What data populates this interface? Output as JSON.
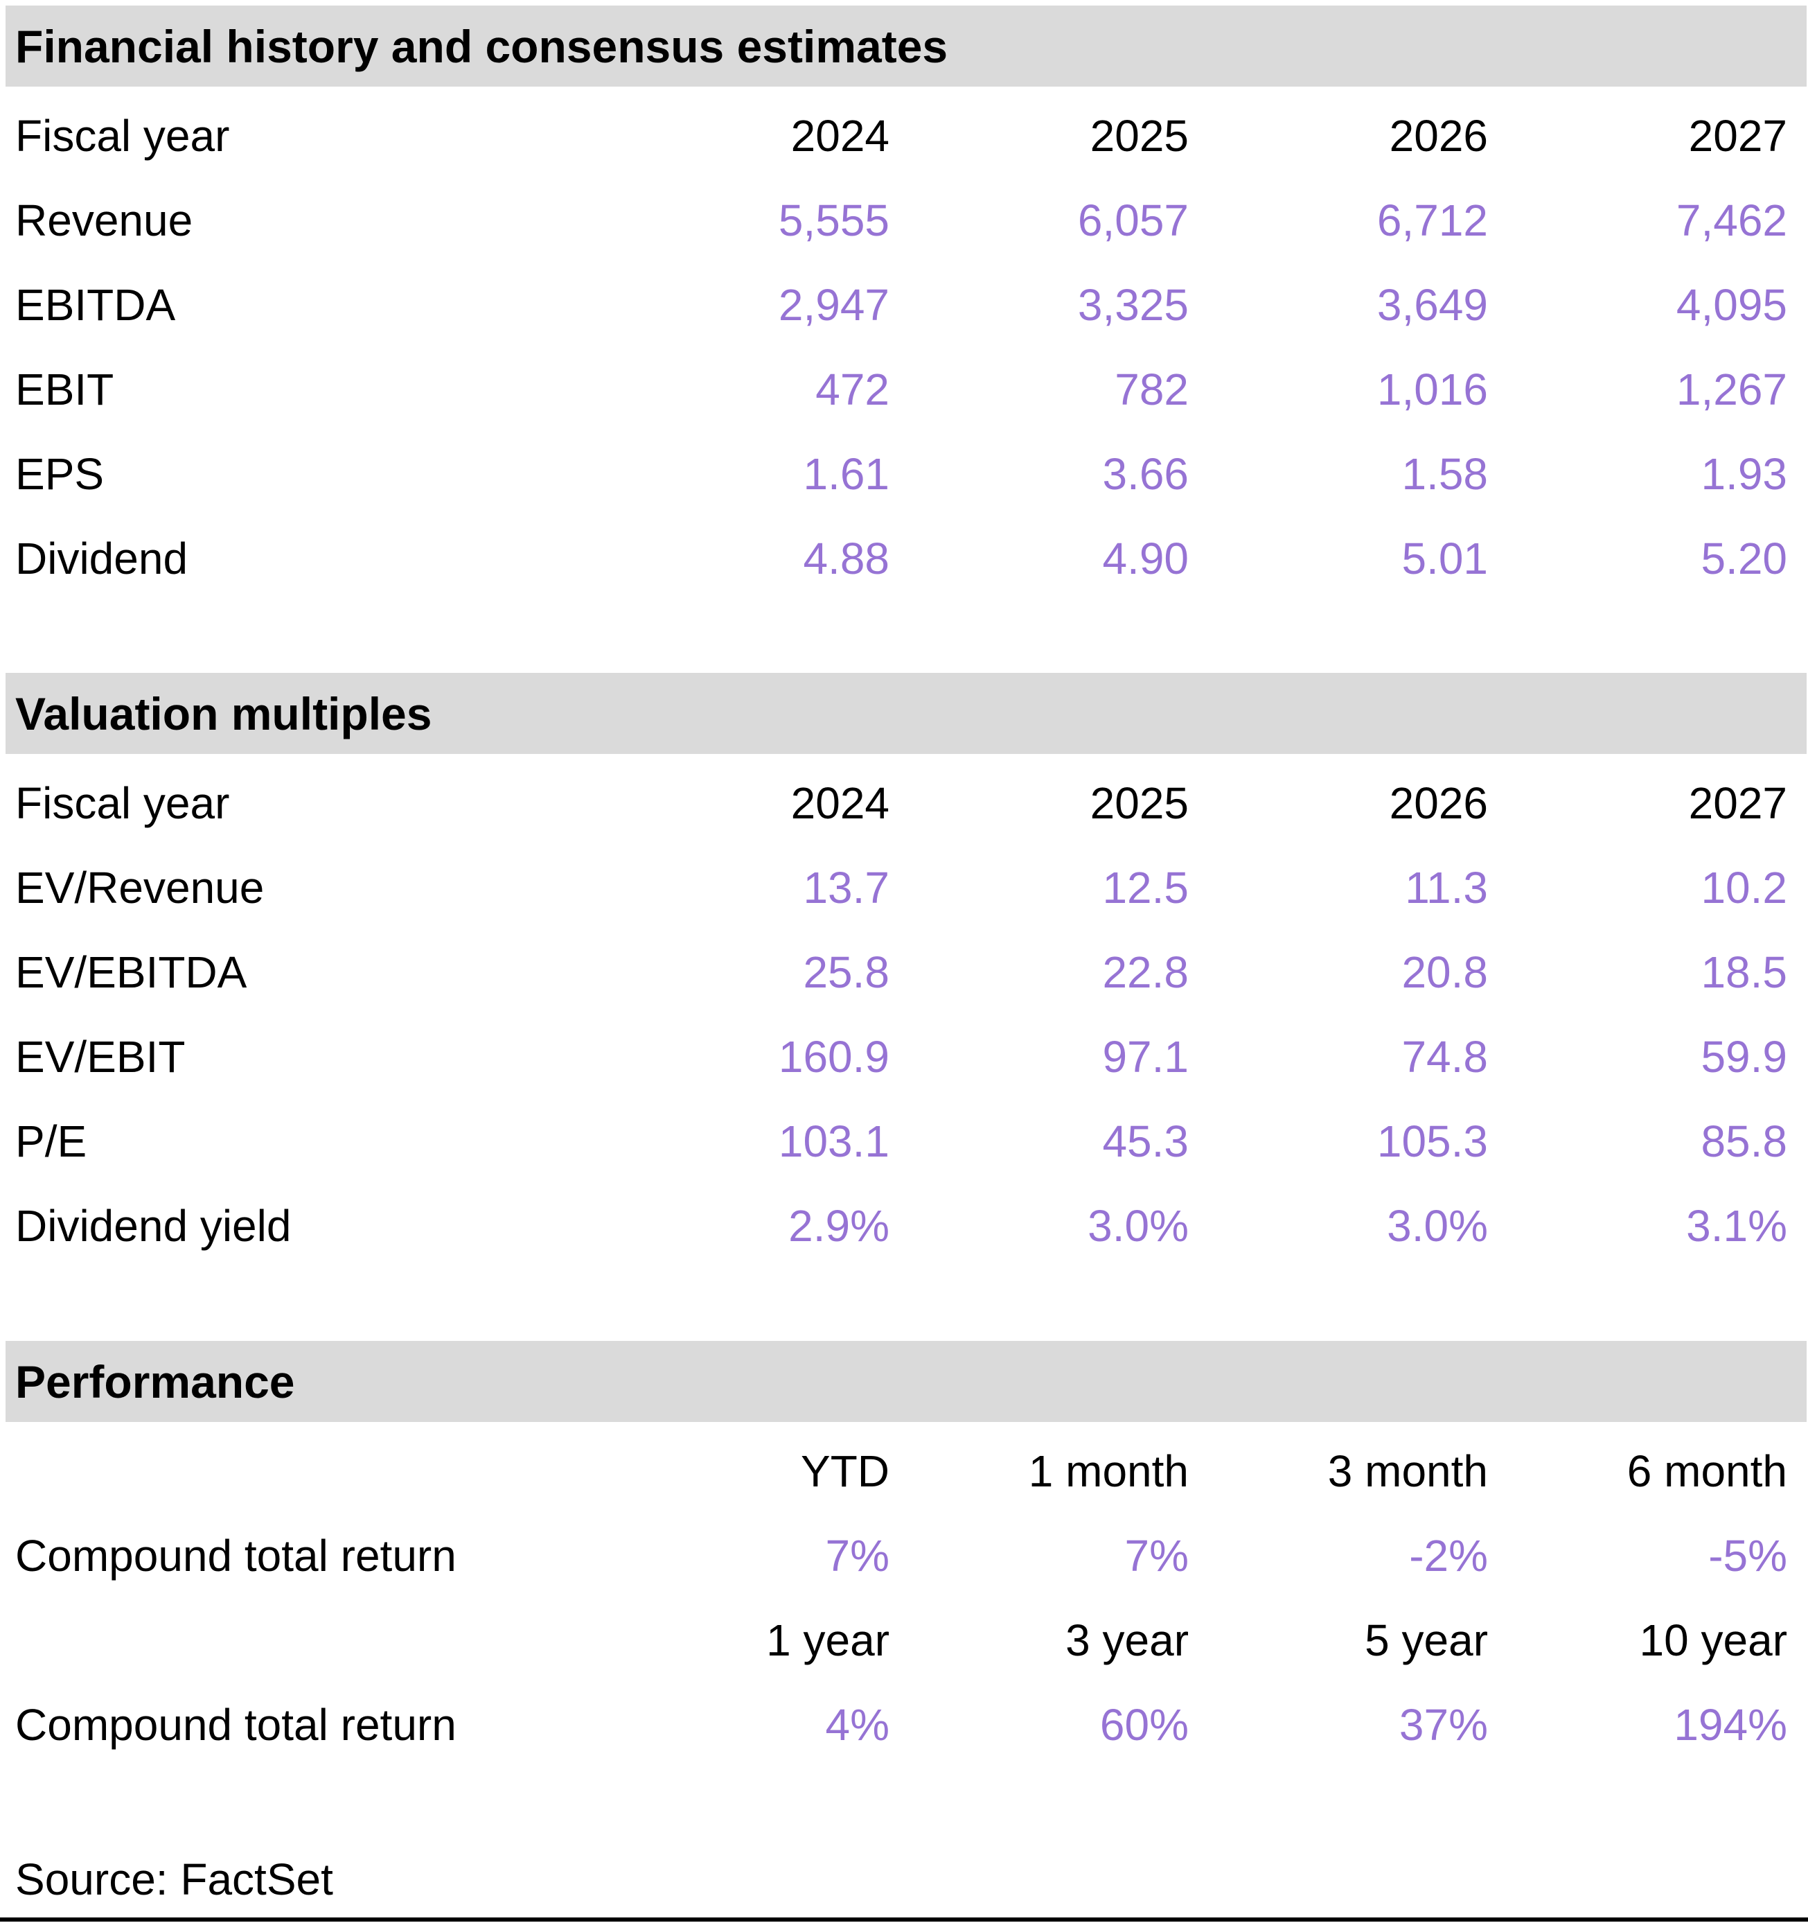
{
  "colors": {
    "accent_purple": "#9673D4",
    "section_bar_bg": "#DADADA",
    "text": "#000000"
  },
  "sections": [
    {
      "title": "Financial history and consensus estimates",
      "header": {
        "label": "Fiscal year",
        "cols": [
          "2024",
          "2025",
          "2026",
          "2027"
        ]
      },
      "rows": [
        {
          "label": "Revenue",
          "values": [
            "5,555",
            "6,057",
            "6,712",
            "7,462"
          ]
        },
        {
          "label": "EBITDA",
          "values": [
            "2,947",
            "3,325",
            "3,649",
            "4,095"
          ]
        },
        {
          "label": "EBIT",
          "values": [
            "472",
            "782",
            "1,016",
            "1,267"
          ]
        },
        {
          "label": "EPS",
          "values": [
            "1.61",
            "3.66",
            "1.58",
            "1.93"
          ]
        },
        {
          "label": "Dividend",
          "values": [
            "4.88",
            "4.90",
            "5.01",
            "5.20"
          ]
        }
      ]
    },
    {
      "title": "Valuation multiples",
      "header": {
        "label": "Fiscal year",
        "cols": [
          "2024",
          "2025",
          "2026",
          "2027"
        ]
      },
      "rows": [
        {
          "label": "EV/Revenue",
          "values": [
            "13.7",
            "12.5",
            "11.3",
            "10.2"
          ]
        },
        {
          "label": "EV/EBITDA",
          "values": [
            "25.8",
            "22.8",
            "20.8",
            "18.5"
          ]
        },
        {
          "label": "EV/EBIT",
          "values": [
            "160.9",
            "97.1",
            "74.8",
            "59.9"
          ]
        },
        {
          "label": "P/E",
          "values": [
            "103.1",
            "45.3",
            "105.3",
            "85.8"
          ]
        },
        {
          "label": "Dividend yield",
          "values": [
            "2.9%",
            "3.0%",
            "3.0%",
            "3.1%"
          ]
        }
      ]
    },
    {
      "title": "Performance",
      "blocks": [
        {
          "header": [
            "YTD",
            "1 month",
            "3 month",
            "6 month"
          ],
          "label": "Compound total return",
          "values": [
            "7%",
            "7%",
            "-2%",
            "-5%"
          ]
        },
        {
          "header": [
            "1 year",
            "3 year",
            "5 year",
            "10 year"
          ],
          "label": "Compound total return",
          "values": [
            "4%",
            "60%",
            "37%",
            "194%"
          ]
        }
      ]
    }
  ],
  "footer": {
    "source": "Source: FactSet"
  }
}
